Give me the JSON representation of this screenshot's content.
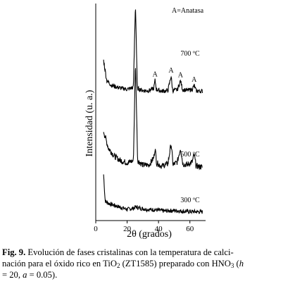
{
  "chart_data": {
    "type": "line",
    "xlabel": "2θ (grados)",
    "ylabel": "Intensidad (u. a.)",
    "xlim": [
      0,
      70
    ],
    "xticks": [
      0,
      20,
      40,
      60
    ],
    "xtick_labels": [
      "0",
      "20",
      "40",
      "60"
    ],
    "legend": "A=Anatasa",
    "legend_position": "top-right",
    "grid": false,
    "series": [
      {
        "name": "700 ºC",
        "peaks": [
          {
            "x": 25.3,
            "label": "A"
          },
          {
            "x": 37.8,
            "label": "A"
          },
          {
            "x": 48.0,
            "label": "A"
          },
          {
            "x": 54.0,
            "label": "A"
          },
          {
            "x": 62.7,
            "label": "A"
          }
        ],
        "points": [
          [
            5,
            105
          ],
          [
            7,
            40
          ],
          [
            10,
            25
          ],
          [
            14,
            18
          ],
          [
            20,
            12
          ],
          [
            24,
            18
          ],
          [
            25.3,
            290
          ],
          [
            26.5,
            15
          ],
          [
            30,
            8
          ],
          [
            34,
            8
          ],
          [
            37,
            15
          ],
          [
            37.8,
            42
          ],
          [
            38.6,
            12
          ],
          [
            42,
            6
          ],
          [
            46,
            8
          ],
          [
            48.0,
            55
          ],
          [
            49,
            8
          ],
          [
            52,
            10
          ],
          [
            54.0,
            40
          ],
          [
            55.3,
            12
          ],
          [
            58,
            8
          ],
          [
            61.5,
            12
          ],
          [
            62.7,
            25
          ],
          [
            64,
            7
          ],
          [
            68,
            6
          ]
        ]
      },
      {
        "name": "500 ºC",
        "points": [
          [
            5,
            95
          ],
          [
            8,
            55
          ],
          [
            12,
            35
          ],
          [
            16,
            25
          ],
          [
            20,
            20
          ],
          [
            24,
            25
          ],
          [
            25.3,
            260
          ],
          [
            26.7,
            25
          ],
          [
            30,
            15
          ],
          [
            34,
            15
          ],
          [
            37,
            32
          ],
          [
            37.8,
            55
          ],
          [
            38.8,
            20
          ],
          [
            42,
            12
          ],
          [
            46,
            18
          ],
          [
            48.0,
            65
          ],
          [
            49.3,
            15
          ],
          [
            52,
            22
          ],
          [
            54.0,
            55
          ],
          [
            55.5,
            18
          ],
          [
            58,
            15
          ],
          [
            61.5,
            22
          ],
          [
            62.7,
            40
          ],
          [
            64,
            12
          ],
          [
            68,
            10
          ]
        ]
      },
      {
        "name": "300 ºC",
        "points": [
          [
            5,
            130
          ],
          [
            6,
            40
          ],
          [
            8,
            32
          ],
          [
            12,
            25
          ],
          [
            16,
            18
          ],
          [
            20,
            12
          ],
          [
            24,
            15
          ],
          [
            25.5,
            20
          ],
          [
            28,
            16
          ],
          [
            32,
            12
          ],
          [
            38,
            10
          ],
          [
            44,
            6
          ],
          [
            50,
            8
          ],
          [
            56,
            5
          ],
          [
            62,
            4
          ],
          [
            68,
            3
          ]
        ]
      }
    ]
  },
  "caption": {
    "fig_label": "Fig. 9.",
    "part1": " Evolución de fases cristalinas con la temperatura de calci-",
    "part2": "nación para el óxido rico en TiO",
    "sub1": "2",
    "part3": " (ZT1585) preparado con HNO",
    "sub2": "3",
    "part4": " (",
    "h": "h",
    "part5": "= 20, ",
    "a": "a",
    "part6": " = 0.05)."
  }
}
